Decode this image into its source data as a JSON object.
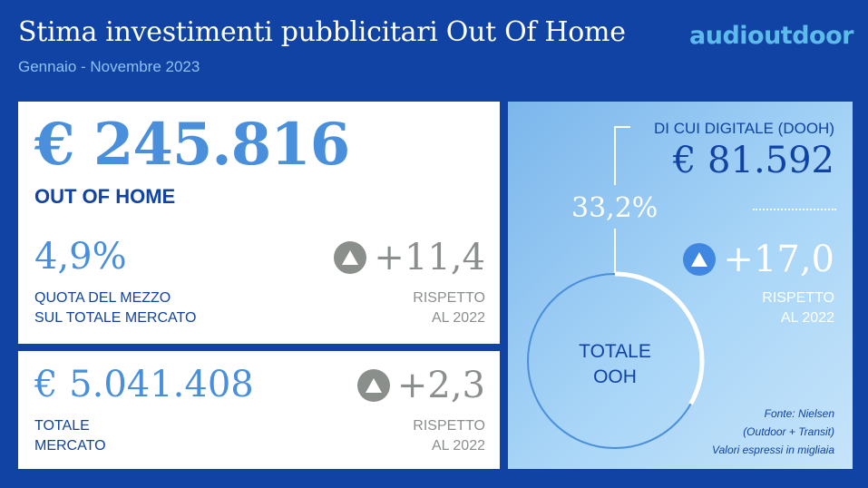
{
  "header": {
    "title": "Stima investimenti pubblicitari Out Of Home",
    "subtitle": "Gennaio - Novembre 2023",
    "logo": "audioutdoor"
  },
  "ooh_card": {
    "value": "€ 245.816",
    "label": "OUT OF HOME",
    "share_value": "4,9%",
    "share_label_line1": "QUOTA DEL MEZZO",
    "share_label_line2": "SUL TOTALE MERCATO",
    "delta": "+11,4",
    "delta_icon": "triangle-up-icon",
    "compare_line1": "RISPETTO",
    "compare_line2": "AL 2022"
  },
  "market_card": {
    "value": "€ 5.041.408",
    "label_line1": "TOTALE",
    "label_line2": "MERCATO",
    "delta": "+2,3",
    "delta_icon": "triangle-up-icon",
    "compare_line1": "RISPETTO",
    "compare_line2": "AL 2022"
  },
  "digital_panel": {
    "label": "DI CUI DIGITALE (DOOH)",
    "value": "€ 81.592",
    "share_pct": "33,2%",
    "share_fraction": 0.332,
    "delta": "+17,0",
    "delta_icon": "triangle-up-icon",
    "compare_line1": "RISPETTO",
    "compare_line2": "AL 2022",
    "ring_line1": "TOTALE",
    "ring_line2": "OOH",
    "source_line1": "Fonte: Nielsen",
    "source_line2": "(Outdoor + Transit)",
    "source_line3": "Valori espressi in migliaia"
  },
  "colors": {
    "background": "#1043a3",
    "accent_blue": "#4a8fdb",
    "dark_blue": "#1043a3",
    "gray": "#8a8f8c",
    "logo": "#5cbbea"
  }
}
